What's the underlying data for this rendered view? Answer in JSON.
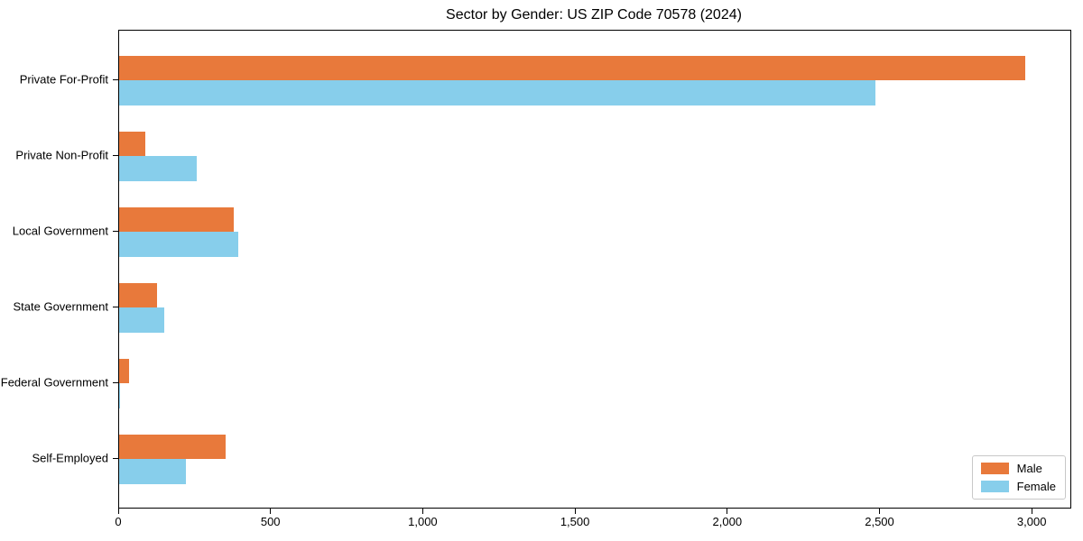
{
  "figure": {
    "background": "#ffffff"
  },
  "chart_data": {
    "type": "bar",
    "orientation": "horizontal",
    "title": "Sector by Gender: US ZIP Code 70578 (2024)",
    "xlabel": "",
    "ylabel": "",
    "categories": [
      "Private For-Profit",
      "Private Non-Profit",
      "Local Government",
      "State Government",
      "Federal Government",
      "Self-Employed"
    ],
    "series": [
      {
        "name": "Male",
        "color": "#E8793B",
        "values": [
          2975,
          85,
          375,
          125,
          32,
          350
        ]
      },
      {
        "name": "Female",
        "color": "#87CEEB",
        "values": [
          2485,
          255,
          390,
          148,
          3,
          220
        ]
      }
    ],
    "xlim": [
      0,
      3124
    ],
    "xticks": [
      {
        "value": 0,
        "label": "0"
      },
      {
        "value": 500,
        "label": "500"
      },
      {
        "value": 1000,
        "label": "1,000"
      },
      {
        "value": 1500,
        "label": "1,500"
      },
      {
        "value": 2000,
        "label": "2,000"
      },
      {
        "value": 2500,
        "label": "2,500"
      },
      {
        "value": 3000,
        "label": "3,000"
      }
    ],
    "grid": false,
    "legend": {
      "position": "lower right",
      "labels": [
        "Male",
        "Female"
      ]
    },
    "colors": {
      "spine": "#000000",
      "text": "#000000",
      "legend_border": "#c8c8c8"
    }
  }
}
